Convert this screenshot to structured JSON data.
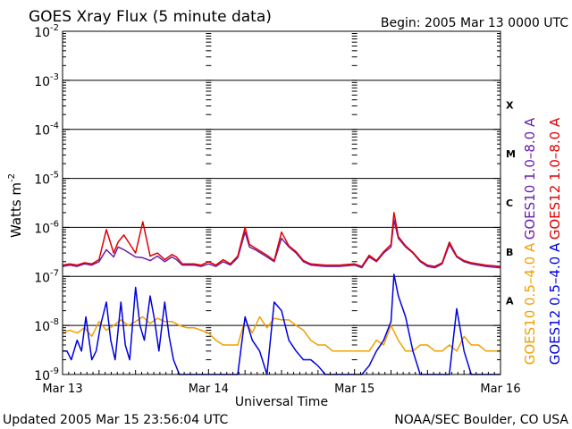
{
  "header": {
    "title": "GOES Xray Flux (5 minute data)",
    "begin": "Begin:  2005 Mar 13 0000 UTC"
  },
  "footer": {
    "updated": "Updated 2005 Mar 15 23:56:04 UTC",
    "credit": "NOAA/SEC Boulder, CO USA"
  },
  "chart_data": {
    "type": "line",
    "title": "GOES Xray Flux (5 minute data)",
    "xlabel": "Universal Time",
    "ylabel_base": "Watts m",
    "ylabel_exp": "-2",
    "xlim": [
      0,
      3
    ],
    "x_unit": "days since 2005 Mar 13 0000 UTC",
    "x_ticks": [
      {
        "x": 0,
        "label": "Mar 13"
      },
      {
        "x": 1,
        "label": "Mar 14"
      },
      {
        "x": 2,
        "label": "Mar 15"
      },
      {
        "x": 3,
        "label": "Mar 16"
      }
    ],
    "y_scale": "log",
    "ylim": [
      1e-09,
      0.01
    ],
    "y_ticks": [
      {
        "exp": -2,
        "base": "10",
        "sup": "-2"
      },
      {
        "exp": -3,
        "base": "10",
        "sup": "-3"
      },
      {
        "exp": -4,
        "base": "10",
        "sup": "-4"
      },
      {
        "exp": -5,
        "base": "10",
        "sup": "-5"
      },
      {
        "exp": -6,
        "base": "10",
        "sup": "-6"
      },
      {
        "exp": -7,
        "base": "10",
        "sup": "-7"
      },
      {
        "exp": -8,
        "base": "10",
        "sup": "-8"
      },
      {
        "exp": -9,
        "base": "10",
        "sup": "-9"
      }
    ],
    "flare_classes": [
      {
        "label": "X",
        "exp": -3.5
      },
      {
        "label": "M",
        "exp": -4.5
      },
      {
        "label": "C",
        "exp": -5.5
      },
      {
        "label": "B",
        "exp": -6.5
      },
      {
        "label": "A",
        "exp": -7.5
      }
    ],
    "legend": [
      {
        "text": "GOES10 1.0–8.0 A",
        "color": "#6a1fa8"
      },
      {
        "text": "GOES12 1.0–8.0 A",
        "color": "#e00000"
      },
      {
        "text": "GOES10 0.5–4.0 A",
        "color": "#f0a000"
      },
      {
        "text": "GOES12 0.5–4.0 A",
        "color": "#0000e0"
      }
    ],
    "grid": true,
    "series": [
      {
        "name": "GOES10 1.0–8.0 A",
        "color": "#6a1fa8",
        "x": [
          0,
          0.05,
          0.1,
          0.15,
          0.2,
          0.25,
          0.3,
          0.35,
          0.38,
          0.42,
          0.5,
          0.55,
          0.6,
          0.65,
          0.7,
          0.75,
          0.78,
          0.82,
          0.9,
          0.95,
          1.0,
          1.05,
          1.1,
          1.15,
          1.2,
          1.25,
          1.28,
          1.32,
          1.4,
          1.45,
          1.5,
          1.55,
          1.6,
          1.65,
          1.7,
          1.8,
          1.9,
          2.0,
          2.05,
          2.1,
          2.15,
          2.2,
          2.25,
          2.27,
          2.3,
          2.35,
          2.4,
          2.45,
          2.5,
          2.55,
          2.6,
          2.65,
          2.7,
          2.75,
          2.8,
          2.9,
          3.0
        ],
        "y": [
          1.6e-07,
          1.7e-07,
          1.6e-07,
          1.8e-07,
          1.7e-07,
          2e-07,
          3.5e-07,
          2.5e-07,
          4e-07,
          3.5e-07,
          2.5e-07,
          2.4e-07,
          2.1e-07,
          2.6e-07,
          2e-07,
          2.5e-07,
          2.2e-07,
          1.7e-07,
          1.7e-07,
          1.6e-07,
          1.8e-07,
          1.6e-07,
          2e-07,
          1.7e-07,
          2.4e-07,
          8e-07,
          4e-07,
          3.5e-07,
          2.5e-07,
          2e-07,
          6e-07,
          4e-07,
          3e-07,
          2e-07,
          1.7e-07,
          1.6e-07,
          1.6e-07,
          1.7e-07,
          1.5e-07,
          2.5e-07,
          2e-07,
          3e-07,
          4e-07,
          1.4e-06,
          6e-07,
          4e-07,
          3e-07,
          2e-07,
          1.6e-07,
          1.5e-07,
          1.8e-07,
          4.5e-07,
          2.5e-07,
          2e-07,
          1.8e-07,
          1.6e-07,
          1.5e-07
        ]
      },
      {
        "name": "GOES12 1.0–8.0 A",
        "color": "#e00000",
        "x": [
          0,
          0.05,
          0.1,
          0.15,
          0.2,
          0.25,
          0.3,
          0.35,
          0.38,
          0.42,
          0.5,
          0.55,
          0.6,
          0.65,
          0.7,
          0.75,
          0.78,
          0.82,
          0.9,
          0.95,
          1.0,
          1.05,
          1.1,
          1.15,
          1.2,
          1.25,
          1.28,
          1.32,
          1.4,
          1.45,
          1.5,
          1.55,
          1.6,
          1.65,
          1.7,
          1.8,
          1.9,
          2.0,
          2.05,
          2.1,
          2.15,
          2.2,
          2.25,
          2.27,
          2.3,
          2.35,
          2.4,
          2.45,
          2.5,
          2.55,
          2.6,
          2.65,
          2.7,
          2.75,
          2.8,
          2.9,
          3.0
        ],
        "y": [
          1.7e-07,
          1.8e-07,
          1.7e-07,
          1.9e-07,
          1.8e-07,
          2.2e-07,
          9e-07,
          3e-07,
          5e-07,
          7e-07,
          3e-07,
          1.3e-06,
          2.6e-07,
          3e-07,
          2.2e-07,
          2.8e-07,
          2.5e-07,
          1.8e-07,
          1.8e-07,
          1.7e-07,
          2e-07,
          1.7e-07,
          2.2e-07,
          1.8e-07,
          2.6e-07,
          1e-06,
          4.5e-07,
          3.8e-07,
          2.7e-07,
          2.1e-07,
          8e-07,
          4.2e-07,
          3.2e-07,
          2.1e-07,
          1.8e-07,
          1.7e-07,
          1.7e-07,
          1.8e-07,
          1.6e-07,
          2.7e-07,
          2.1e-07,
          3.2e-07,
          4.5e-07,
          2e-06,
          6.5e-07,
          4.2e-07,
          3.1e-07,
          2.1e-07,
          1.7e-07,
          1.6e-07,
          1.9e-07,
          5e-07,
          2.6e-07,
          2.1e-07,
          1.9e-07,
          1.7e-07,
          1.6e-07
        ]
      },
      {
        "name": "GOES10 0.5–4.0 A",
        "color": "#f0a000",
        "x": [
          0,
          0.05,
          0.1,
          0.15,
          0.2,
          0.25,
          0.3,
          0.35,
          0.4,
          0.45,
          0.5,
          0.55,
          0.6,
          0.65,
          0.7,
          0.75,
          0.8,
          0.85,
          0.9,
          0.95,
          1.0,
          1.05,
          1.1,
          1.15,
          1.2,
          1.25,
          1.3,
          1.35,
          1.4,
          1.45,
          1.5,
          1.55,
          1.6,
          1.65,
          1.7,
          1.75,
          1.8,
          1.85,
          1.9,
          1.95,
          2.0,
          2.05,
          2.1,
          2.15,
          2.2,
          2.25,
          2.3,
          2.35,
          2.4,
          2.45,
          2.5,
          2.55,
          2.6,
          2.65,
          2.7,
          2.75,
          2.8,
          2.85,
          2.9,
          2.95,
          3.0
        ],
        "y": [
          7e-09,
          8e-09,
          7e-09,
          9e-09,
          6e-09,
          1.2e-08,
          8e-09,
          1e-08,
          1.3e-08,
          1e-08,
          1.2e-08,
          1.5e-08,
          1.1e-08,
          1.4e-08,
          1.2e-08,
          1.2e-08,
          1e-08,
          9e-09,
          9e-09,
          8e-09,
          7e-09,
          5e-09,
          4e-09,
          4e-09,
          4e-09,
          1.3e-08,
          7e-09,
          1.5e-08,
          9e-09,
          1.4e-08,
          1.3e-08,
          1.3e-08,
          1e-08,
          8e-09,
          5e-09,
          4e-09,
          4e-09,
          3e-09,
          3e-09,
          3e-09,
          3e-09,
          3e-09,
          3e-09,
          5e-09,
          4e-09,
          1e-08,
          5e-09,
          3e-09,
          3e-09,
          4e-09,
          4e-09,
          3e-09,
          3e-09,
          4e-09,
          3e-09,
          6e-09,
          4e-09,
          4e-09,
          3e-09,
          3e-09,
          3e-09
        ]
      },
      {
        "name": "GOES12 0.5–4.0 A",
        "color": "#0000e0",
        "x": [
          0,
          0.03,
          0.06,
          0.1,
          0.13,
          0.16,
          0.2,
          0.23,
          0.26,
          0.3,
          0.33,
          0.36,
          0.4,
          0.43,
          0.46,
          0.5,
          0.53,
          0.56,
          0.6,
          0.63,
          0.66,
          0.7,
          0.73,
          0.76,
          0.8,
          0.85,
          0.9,
          0.95,
          1.0,
          1.05,
          1.1,
          1.15,
          1.2,
          1.25,
          1.3,
          1.35,
          1.4,
          1.45,
          1.5,
          1.55,
          1.6,
          1.65,
          1.7,
          1.75,
          1.8,
          1.85,
          1.9,
          1.95,
          2.0,
          2.05,
          2.1,
          2.15,
          2.2,
          2.25,
          2.27,
          2.3,
          2.35,
          2.4,
          2.45,
          2.5,
          2.55,
          2.6,
          2.65,
          2.7,
          2.75,
          2.8,
          2.85,
          2.9,
          2.95,
          3.0
        ],
        "y": [
          3e-09,
          3e-09,
          2e-09,
          5e-09,
          3e-09,
          1.5e-08,
          2e-09,
          3e-09,
          1e-08,
          3e-08,
          5e-09,
          2e-09,
          3e-08,
          4e-09,
          2e-09,
          6e-08,
          1e-08,
          5e-09,
          4e-08,
          1.3e-08,
          3e-09,
          3e-08,
          6e-09,
          2e-09,
          1e-09,
          1e-09,
          1e-09,
          1e-09,
          1e-09,
          1e-09,
          1e-09,
          1e-09,
          1e-09,
          1.5e-08,
          5e-09,
          3e-09,
          1e-09,
          3e-08,
          2e-08,
          5e-09,
          3e-09,
          2e-09,
          2e-09,
          1.5e-09,
          1e-09,
          1e-09,
          1e-09,
          1e-09,
          1e-09,
          1e-09,
          1.5e-09,
          3e-09,
          5e-09,
          1.2e-08,
          1.1e-07,
          4e-08,
          1.5e-08,
          3e-09,
          1e-09,
          1e-09,
          1e-09,
          1e-09,
          1e-09,
          2.2e-08,
          3e-09,
          1e-09,
          1e-09,
          1e-09,
          1e-09,
          1e-09
        ]
      }
    ]
  }
}
